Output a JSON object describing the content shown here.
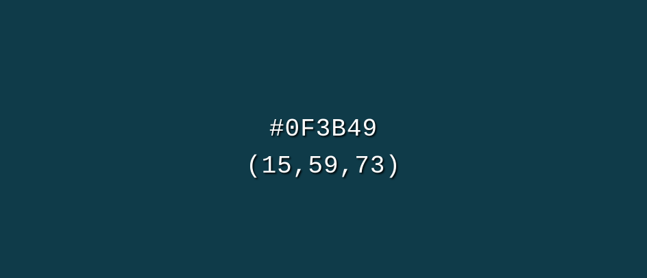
{
  "swatch": {
    "color": "#0F3B49",
    "hex_label": "#0F3B49",
    "rgb_label": "(15,59,73)"
  }
}
